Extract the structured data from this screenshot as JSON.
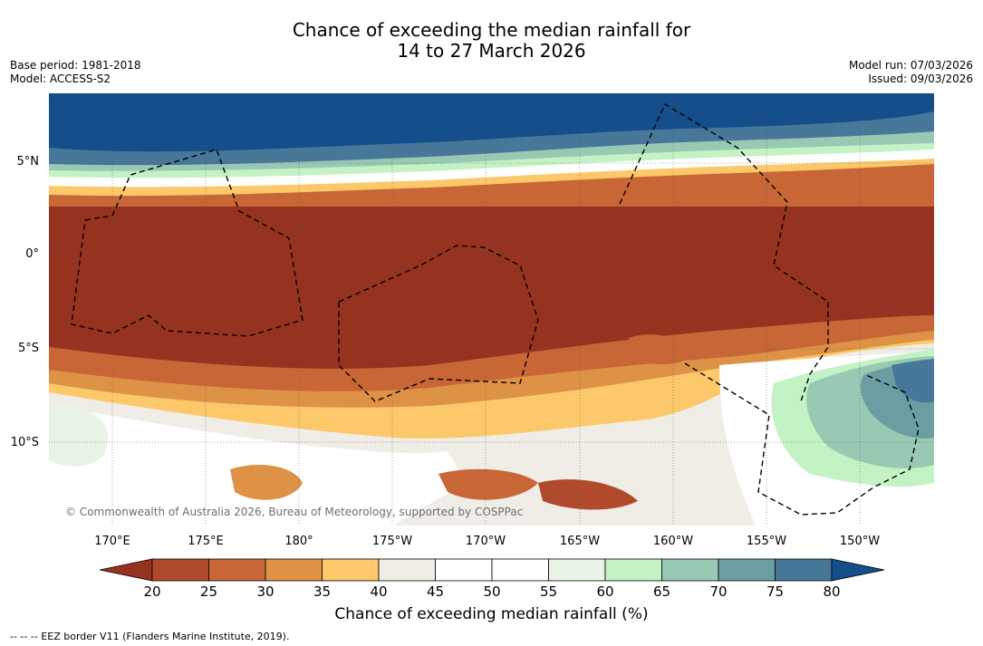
{
  "title": {
    "line1": "Chance of exceeding the median rainfall for",
    "line2": "14 to 27 March 2026"
  },
  "meta": {
    "base_period": "Base period: 1981-2018",
    "model": "Model: ACCESS-S2",
    "model_run": "Model run: 07/03/2026",
    "issued": "Issued: 09/03/2026"
  },
  "map": {
    "lat_labels": [
      "5°N",
      "0°",
      "5°S",
      "10°S"
    ],
    "lon_labels": [
      "170°E",
      "175°E",
      "180°",
      "175°W",
      "170°W",
      "165°W",
      "160°W",
      "155°W",
      "150°W"
    ],
    "credit": "© Commonwealth of Australia 2026, Bureau of Meteorology, supported by COSPPac"
  },
  "colorbar": {
    "ticks": [
      "20",
      "25",
      "30",
      "35",
      "40",
      "45",
      "50",
      "55",
      "60",
      "65",
      "70",
      "75",
      "80"
    ],
    "colors": [
      "#963320",
      "#b14a2c",
      "#c96636",
      "#dd9246",
      "#fcc869",
      "#f0ede7",
      "#ffffff",
      "#ffffff",
      "#e9f4e6",
      "#c3f3c5",
      "#98c9b3",
      "#6a9ea2",
      "#477799",
      "#144e8b"
    ],
    "label": "Chance of exceeding median rainfall (%)"
  },
  "footnote": "-- -- -- EEZ border V11 (Flanders Marine Institute, 2019)."
}
